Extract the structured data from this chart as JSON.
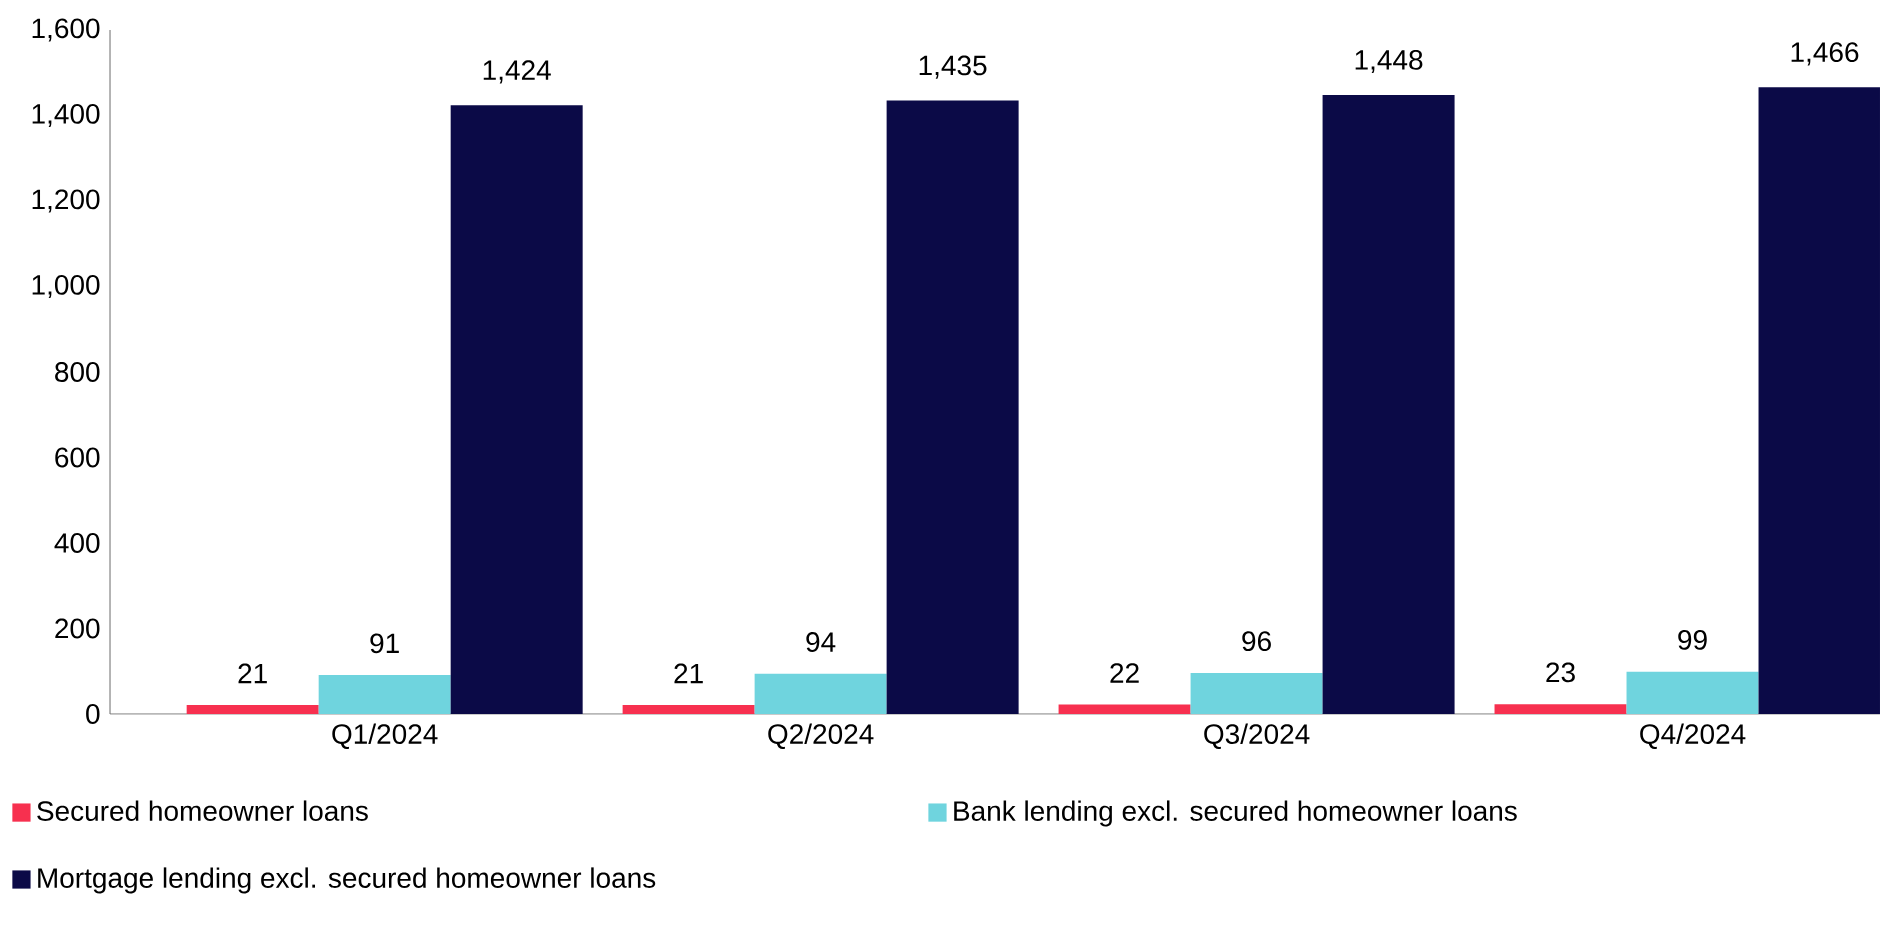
{
  "chart_data": {
    "type": "bar",
    "categories": [
      "Q1/2024",
      "Q2/2024",
      "Q3/2024",
      "Q4/2024"
    ],
    "series": [
      {
        "name": "Secured homeowner loans",
        "color": "#f7304f",
        "values": [
          21,
          21,
          22,
          23
        ],
        "value_labels": [
          "21",
          "21",
          "22",
          "23"
        ]
      },
      {
        "name": "Bank lending excl. secured homeowner loans",
        "color": "#6fd4de",
        "values": [
          91,
          94,
          96,
          99
        ],
        "value_labels": [
          "91",
          "94",
          "96",
          "99"
        ]
      },
      {
        "name": "Mortgage lending excl. secured homeowner loans",
        "color": "#0b0a47",
        "values": [
          1424,
          1435,
          1448,
          1466
        ],
        "value_labels": [
          "1,424",
          "1,435",
          "1,448",
          "1,466"
        ]
      }
    ],
    "ylim": [
      0,
      1600
    ],
    "yticks": [
      {
        "value": 0,
        "label": "0"
      },
      {
        "value": 200,
        "label": "200"
      },
      {
        "value": 400,
        "label": "400"
      },
      {
        "value": 600,
        "label": "600"
      },
      {
        "value": 800,
        "label": "800"
      },
      {
        "value": 1000,
        "label": "1,000"
      },
      {
        "value": 1200,
        "label": "1,200"
      },
      {
        "value": 1400,
        "label": "1,400"
      },
      {
        "value": 1600,
        "label": "1,600"
      }
    ],
    "grid": false,
    "legend": "bottom"
  }
}
